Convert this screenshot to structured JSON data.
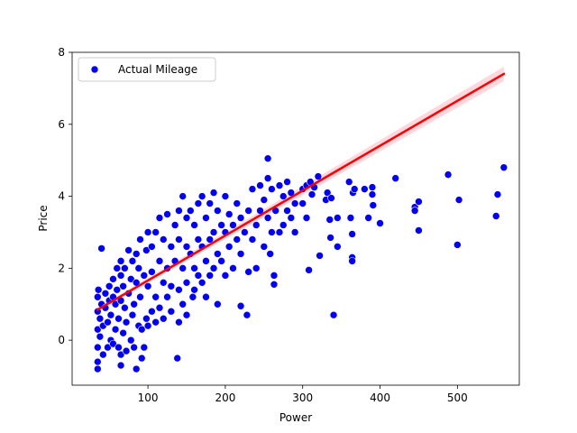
{
  "chart_data": {
    "type": "scatter",
    "xlabel": "Power",
    "ylabel": "Price",
    "xlim": [
      2,
      580
    ],
    "ylim": [
      -1.25,
      8
    ],
    "x_ticks": [
      100,
      200,
      300,
      400,
      500
    ],
    "y_ticks": [
      0,
      2,
      4,
      6,
      8
    ],
    "x_tick_labels": [
      "100",
      "200",
      "300",
      "400",
      "500"
    ],
    "y_tick_labels": [
      "0",
      "2",
      "4",
      "6",
      "8"
    ],
    "grid": false,
    "legend": {
      "position": "top-left",
      "entries": [
        "Actual Mileage"
      ]
    },
    "colors": {
      "points": "#0000ff",
      "point_edge": "#ffffff",
      "regression": "#ff0000",
      "ci_band": "#ffb6c1"
    },
    "series": [
      {
        "name": "Actual Mileage",
        "kind": "scatter",
        "points": [
          [
            35,
            -0.8
          ],
          [
            35,
            -0.6
          ],
          [
            35,
            -0.2
          ],
          [
            35,
            0.3
          ],
          [
            35,
            0.8
          ],
          [
            35,
            1.2
          ],
          [
            36,
            1.4
          ],
          [
            38,
            0.1
          ],
          [
            38,
            0.6
          ],
          [
            40,
            1.0
          ],
          [
            40,
            2.55
          ],
          [
            42,
            -0.4
          ],
          [
            42,
            0.4
          ],
          [
            45,
            0.9
          ],
          [
            45,
            1.3
          ],
          [
            48,
            -0.2
          ],
          [
            48,
            0.5
          ],
          [
            50,
            1.1
          ],
          [
            50,
            1.5
          ],
          [
            52,
            0.0
          ],
          [
            52,
            0.7
          ],
          [
            55,
            -0.1
          ],
          [
            55,
            1.2
          ],
          [
            55,
            1.7
          ],
          [
            58,
            0.3
          ],
          [
            58,
            1.0
          ],
          [
            60,
            1.4
          ],
          [
            60,
            2.0
          ],
          [
            62,
            -0.2
          ],
          [
            62,
            0.6
          ],
          [
            65,
            -0.7
          ],
          [
            65,
            -0.4
          ],
          [
            65,
            1.1
          ],
          [
            65,
            1.8
          ],
          [
            65,
            2.2
          ],
          [
            68,
            0.2
          ],
          [
            68,
            1.5
          ],
          [
            70,
            0.9
          ],
          [
            70,
            2.0
          ],
          [
            72,
            -0.3
          ],
          [
            72,
            0.5
          ],
          [
            75,
            1.3
          ],
          [
            75,
            2.5
          ],
          [
            78,
            0.0
          ],
          [
            78,
            1.7
          ],
          [
            80,
            0.7
          ],
          [
            80,
            2.2
          ],
          [
            82,
            -0.2
          ],
          [
            82,
            1.0
          ],
          [
            85,
            -0.8
          ],
          [
            85,
            1.6
          ],
          [
            85,
            2.4
          ],
          [
            88,
            0.4
          ],
          [
            88,
            2.0
          ],
          [
            90,
            2.8
          ],
          [
            90,
            1.2
          ],
          [
            92,
            -0.5
          ],
          [
            92,
            0.3
          ],
          [
            95,
            1.8
          ],
          [
            95,
            -0.2
          ],
          [
            98,
            0.6
          ],
          [
            98,
            2.5
          ],
          [
            100,
            1.5
          ],
          [
            100,
            3.0
          ],
          [
            100,
            0.4
          ],
          [
            105,
            1.9
          ],
          [
            105,
            0.8
          ],
          [
            105,
            2.6
          ],
          [
            110,
            1.2
          ],
          [
            110,
            3.0
          ],
          [
            110,
            0.5
          ],
          [
            115,
            2.2
          ],
          [
            115,
            3.4
          ],
          [
            115,
            0.9
          ],
          [
            120,
            1.6
          ],
          [
            120,
            2.8
          ],
          [
            120,
            0.6
          ],
          [
            125,
            3.5
          ],
          [
            125,
            2.0
          ],
          [
            125,
            1.2
          ],
          [
            130,
            2.6
          ],
          [
            130,
            1.5
          ],
          [
            130,
            0.8
          ],
          [
            135,
            3.2
          ],
          [
            135,
            2.2
          ],
          [
            138,
            -0.5
          ],
          [
            140,
            3.6
          ],
          [
            140,
            2.8
          ],
          [
            140,
            1.4
          ],
          [
            140,
            0.5
          ],
          [
            145,
            2.0
          ],
          [
            145,
            4.0
          ],
          [
            145,
            1.0
          ],
          [
            150,
            3.4
          ],
          [
            150,
            2.6
          ],
          [
            150,
            1.6
          ],
          [
            150,
            0.7
          ],
          [
            155,
            2.4
          ],
          [
            155,
            3.6
          ],
          [
            158,
            1.2
          ],
          [
            160,
            3.2
          ],
          [
            160,
            2.0
          ],
          [
            160,
            1.4
          ],
          [
            165,
            3.8
          ],
          [
            165,
            2.8
          ],
          [
            165,
            1.8
          ],
          [
            170,
            4.0
          ],
          [
            170,
            2.6
          ],
          [
            170,
            1.6
          ],
          [
            175,
            3.4
          ],
          [
            175,
            2.2
          ],
          [
            175,
            1.2
          ],
          [
            180,
            3.8
          ],
          [
            180,
            2.8
          ],
          [
            180,
            1.8
          ],
          [
            185,
            4.1
          ],
          [
            185,
            3.0
          ],
          [
            185,
            2.0
          ],
          [
            190,
            3.6
          ],
          [
            190,
            2.4
          ],
          [
            190,
            1.0
          ],
          [
            195,
            3.2
          ],
          [
            195,
            2.2
          ],
          [
            200,
            4.0
          ],
          [
            200,
            3.0
          ],
          [
            200,
            1.8
          ],
          [
            205,
            3.5
          ],
          [
            205,
            2.6
          ],
          [
            210,
            3.2
          ],
          [
            210,
            2.0
          ],
          [
            215,
            3.8
          ],
          [
            215,
            2.8
          ],
          [
            220,
            3.4
          ],
          [
            220,
            2.4
          ],
          [
            220,
            0.95
          ],
          [
            225,
            3.0
          ],
          [
            228,
            0.7
          ],
          [
            230,
            3.6
          ],
          [
            230,
            1.9
          ],
          [
            235,
            4.2
          ],
          [
            235,
            2.8
          ],
          [
            240,
            3.2
          ],
          [
            240,
            2.0
          ],
          [
            245,
            4.3
          ],
          [
            245,
            3.6
          ],
          [
            250,
            2.6
          ],
          [
            250,
            3.9
          ],
          [
            255,
            4.5
          ],
          [
            255,
            5.05
          ],
          [
            255,
            3.4
          ],
          [
            258,
            2.4
          ],
          [
            260,
            4.2
          ],
          [
            260,
            3.0
          ],
          [
            263,
            1.8
          ],
          [
            263,
            1.55
          ],
          [
            265,
            3.6
          ],
          [
            270,
            4.3
          ],
          [
            270,
            3.0
          ],
          [
            275,
            4.0
          ],
          [
            275,
            3.2
          ],
          [
            280,
            4.4
          ],
          [
            280,
            3.6
          ],
          [
            285,
            3.4
          ],
          [
            285,
            4.1
          ],
          [
            290,
            3.8
          ],
          [
            290,
            3.0
          ],
          [
            300,
            4.2
          ],
          [
            300,
            3.8
          ],
          [
            305,
            3.4
          ],
          [
            305,
            4.3
          ],
          [
            308,
            1.95
          ],
          [
            310,
            4.4
          ],
          [
            312,
            4.05
          ],
          [
            315,
            4.25
          ],
          [
            320,
            4.55
          ],
          [
            322,
            2.35
          ],
          [
            330,
            3.9
          ],
          [
            332,
            4.1
          ],
          [
            335,
            3.35
          ],
          [
            336,
            2.85
          ],
          [
            337,
            3.95
          ],
          [
            340,
            0.7
          ],
          [
            345,
            3.4
          ],
          [
            345,
            2.6
          ],
          [
            360,
            4.4
          ],
          [
            362,
            3.4
          ],
          [
            364,
            2.3
          ],
          [
            364,
            2.2
          ],
          [
            364,
            2.95
          ],
          [
            365,
            4.1
          ],
          [
            367,
            4.2
          ],
          [
            380,
            4.2
          ],
          [
            385,
            3.4
          ],
          [
            390,
            4.25
          ],
          [
            390,
            4.05
          ],
          [
            391,
            3.75
          ],
          [
            400,
            3.25
          ],
          [
            420,
            4.5
          ],
          [
            445,
            3.7
          ],
          [
            445,
            3.6
          ],
          [
            450,
            3.05
          ],
          [
            450,
            3.85
          ],
          [
            488,
            4.6
          ],
          [
            500,
            2.65
          ],
          [
            502,
            3.9
          ],
          [
            550,
            3.45
          ],
          [
            552,
            4.05
          ],
          [
            560,
            4.8
          ]
        ]
      },
      {
        "name": "",
        "kind": "regression-line",
        "x": [
          35,
          560
        ],
        "y": [
          0.85,
          7.4
        ],
        "ci_halfwidth": [
          0.05,
          0.2
        ]
      }
    ]
  }
}
